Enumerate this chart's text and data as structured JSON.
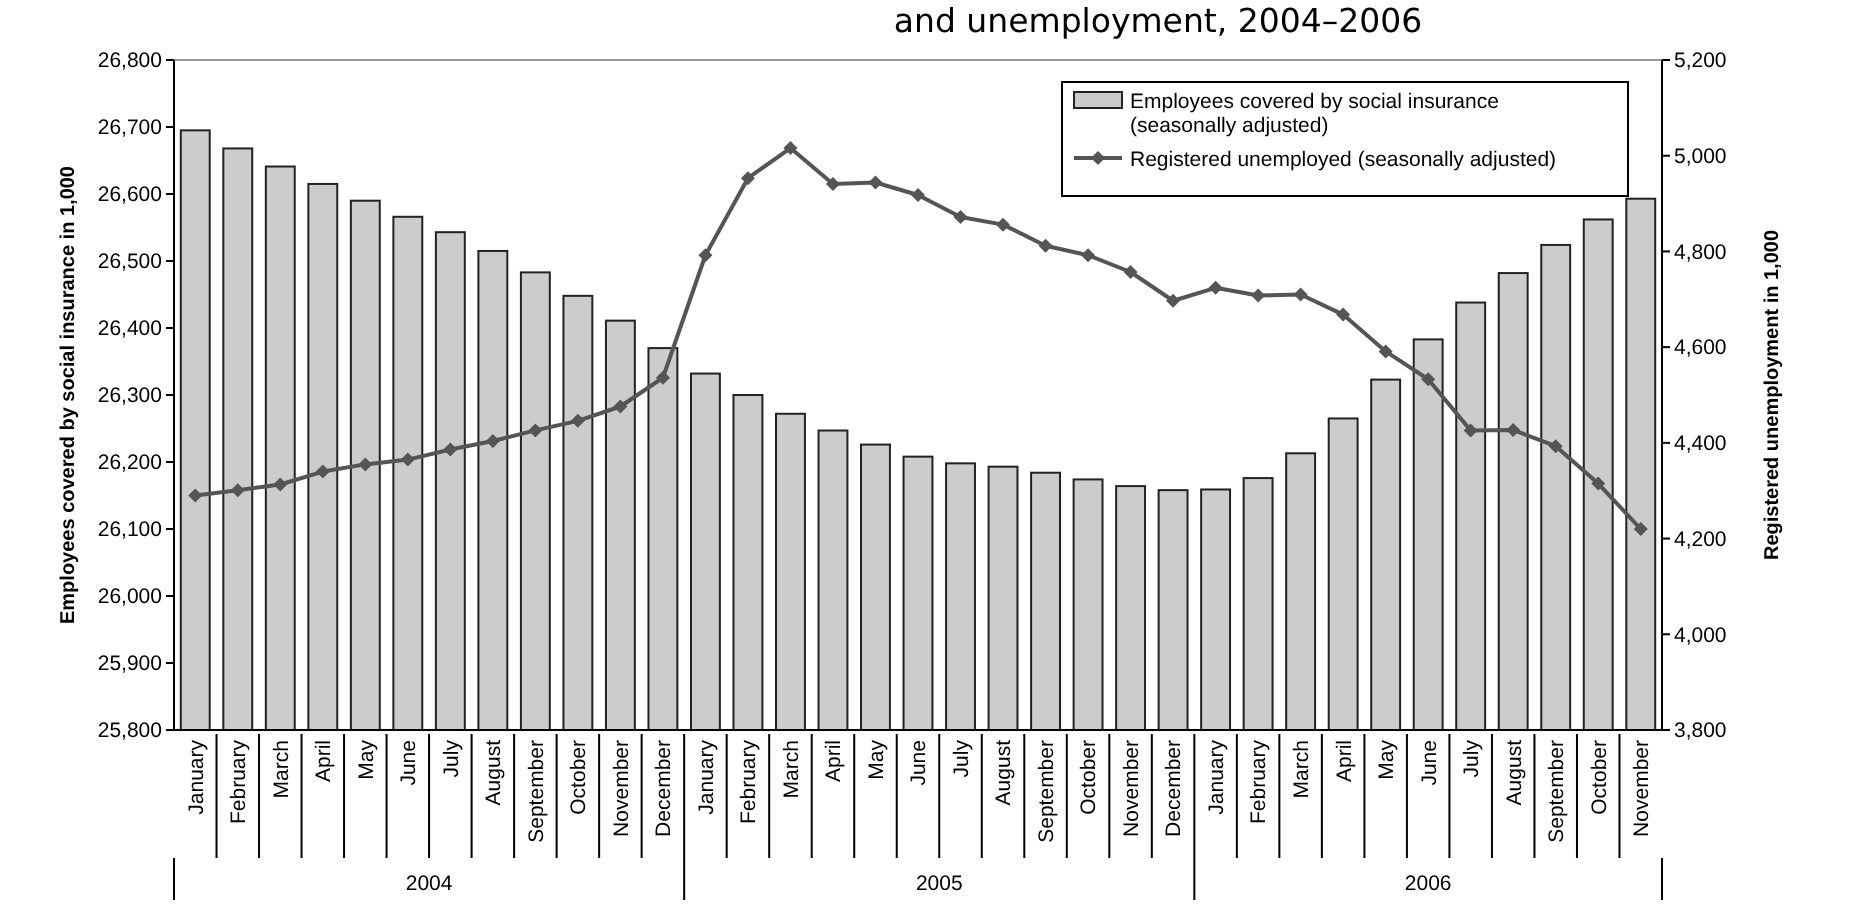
{
  "chart_data": {
    "type": "bar",
    "title": "and unemployment, 2004–2006",
    "ylabel": "Employees covered by social insurance in 1,000",
    "y2label": "Registered unemployment in 1,000",
    "categories": [
      "January",
      "February",
      "March",
      "April",
      "May",
      "June",
      "July",
      "August",
      "September",
      "October",
      "November",
      "December",
      "January",
      "February",
      "March",
      "April",
      "May",
      "June",
      "July",
      "August",
      "September",
      "October",
      "November",
      "December",
      "January",
      "February",
      "March",
      "April",
      "May",
      "June",
      "July",
      "August",
      "September",
      "October",
      "November"
    ],
    "series": [
      {
        "name": "Employees covered by social insurance (seasonally adjusted)",
        "color": "#cccccc",
        "values": [
          26695,
          26668,
          26641,
          26615,
          26590,
          26566,
          26543,
          26515,
          26483,
          26448,
          26411,
          26370,
          26332,
          26300,
          26272,
          26247,
          26226,
          26208,
          26198,
          26193,
          26184,
          26174,
          26164,
          26158,
          26159,
          26176,
          26213,
          26265,
          26323,
          26383,
          26438,
          26482,
          26524,
          26562,
          26593
        ]
      },
      {
        "name": "Registered unemployed (seasonally adjusted)",
        "type": "line",
        "axis": "y2",
        "color": "#555555",
        "marker": "diamond",
        "values": [
          4290,
          4301,
          4313,
          4340,
          4355,
          4365,
          4386,
          4404,
          4426,
          4446,
          4476,
          4536,
          4792,
          4953,
          5016,
          4941,
          4944,
          4918,
          4872,
          4856,
          4812,
          4792,
          4757,
          4697,
          4724,
          4708,
          4710,
          4668,
          4591,
          4533,
          4426,
          4427,
          4393,
          4315,
          4220
        ]
      }
    ],
    "annotations": [
      "2004",
      "2005",
      "2006"
    ],
    "ylim": [
      25800,
      26800
    ],
    "yticks": [
      {
        "value": 25800,
        "label": "25,800"
      },
      {
        "value": 25900,
        "label": "25,900"
      },
      {
        "value": 26000,
        "label": "26,000"
      },
      {
        "value": 26100,
        "label": "26,100"
      },
      {
        "value": 26200,
        "label": "26,200"
      },
      {
        "value": 26300,
        "label": "26,300"
      },
      {
        "value": 26400,
        "label": "26,400"
      },
      {
        "value": 26500,
        "label": "26,500"
      },
      {
        "value": 26600,
        "label": "26,600"
      },
      {
        "value": 26700,
        "label": "26,700"
      },
      {
        "value": 26800,
        "label": "26,800"
      }
    ],
    "y2lim": [
      3800,
      5200
    ],
    "y2ticks": [
      {
        "value": 3800,
        "label": "3,800"
      },
      {
        "value": 4000,
        "label": "4,000"
      },
      {
        "value": 4200,
        "label": "4,200"
      },
      {
        "value": 4400,
        "label": "4,400"
      },
      {
        "value": 4600,
        "label": "4,600"
      },
      {
        "value": 4800,
        "label": "4,800"
      },
      {
        "value": 5000,
        "label": "5,000"
      },
      {
        "value": 5200,
        "label": "5,200"
      }
    ],
    "grid": false,
    "legend": "top right"
  }
}
